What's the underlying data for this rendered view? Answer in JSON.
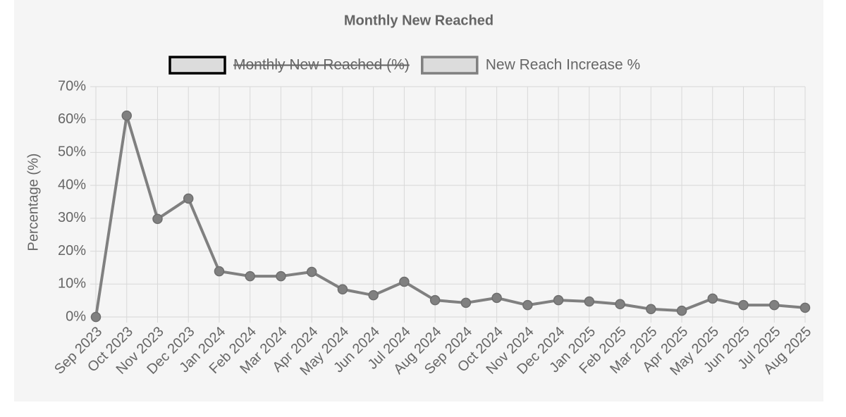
{
  "chart_data": {
    "type": "line",
    "title": "Monthly New Reached",
    "y_label": "Percentage (%)",
    "categories": [
      "Sep 2023",
      "Oct 2023",
      "Nov 2023",
      "Dec 2023",
      "Jan 2024",
      "Feb 2024",
      "Mar 2024",
      "Apr 2024",
      "May 2024",
      "Jun 2024",
      "Jul 2024",
      "Aug 2024",
      "Sep 2024",
      "Oct 2024",
      "Nov 2024",
      "Dec 2024",
      "Jan 2025",
      "Feb 2025",
      "Mar 2025",
      "Apr 2025",
      "May 2025",
      "Jun 2025",
      "Jul 2025",
      "Aug 2025"
    ],
    "series": [
      {
        "name": "Monthly New Reached (%)",
        "color": "#000000",
        "hidden": true
      },
      {
        "name": "New Reach Increase %",
        "color": "#808080",
        "values": [
          0,
          61.2,
          29.8,
          36.0,
          13.9,
          12.4,
          12.4,
          13.7,
          8.4,
          6.6,
          10.7,
          5.1,
          4.3,
          5.8,
          3.6,
          5.1,
          4.7,
          3.9,
          2.4,
          1.9,
          5.6,
          3.6,
          3.6,
          2.8
        ]
      }
    ],
    "ylim": [
      0,
      70
    ],
    "yticks": [
      {
        "value": 0,
        "label": "0%"
      },
      {
        "value": 10,
        "label": "10%"
      },
      {
        "value": 20,
        "label": "20%"
      },
      {
        "value": 30,
        "label": "30%"
      },
      {
        "value": 40,
        "label": "40%"
      },
      {
        "value": 50,
        "label": "50%"
      },
      {
        "value": 60,
        "label": "60%"
      },
      {
        "value": 70,
        "label": "70%"
      }
    ],
    "grid": true
  }
}
